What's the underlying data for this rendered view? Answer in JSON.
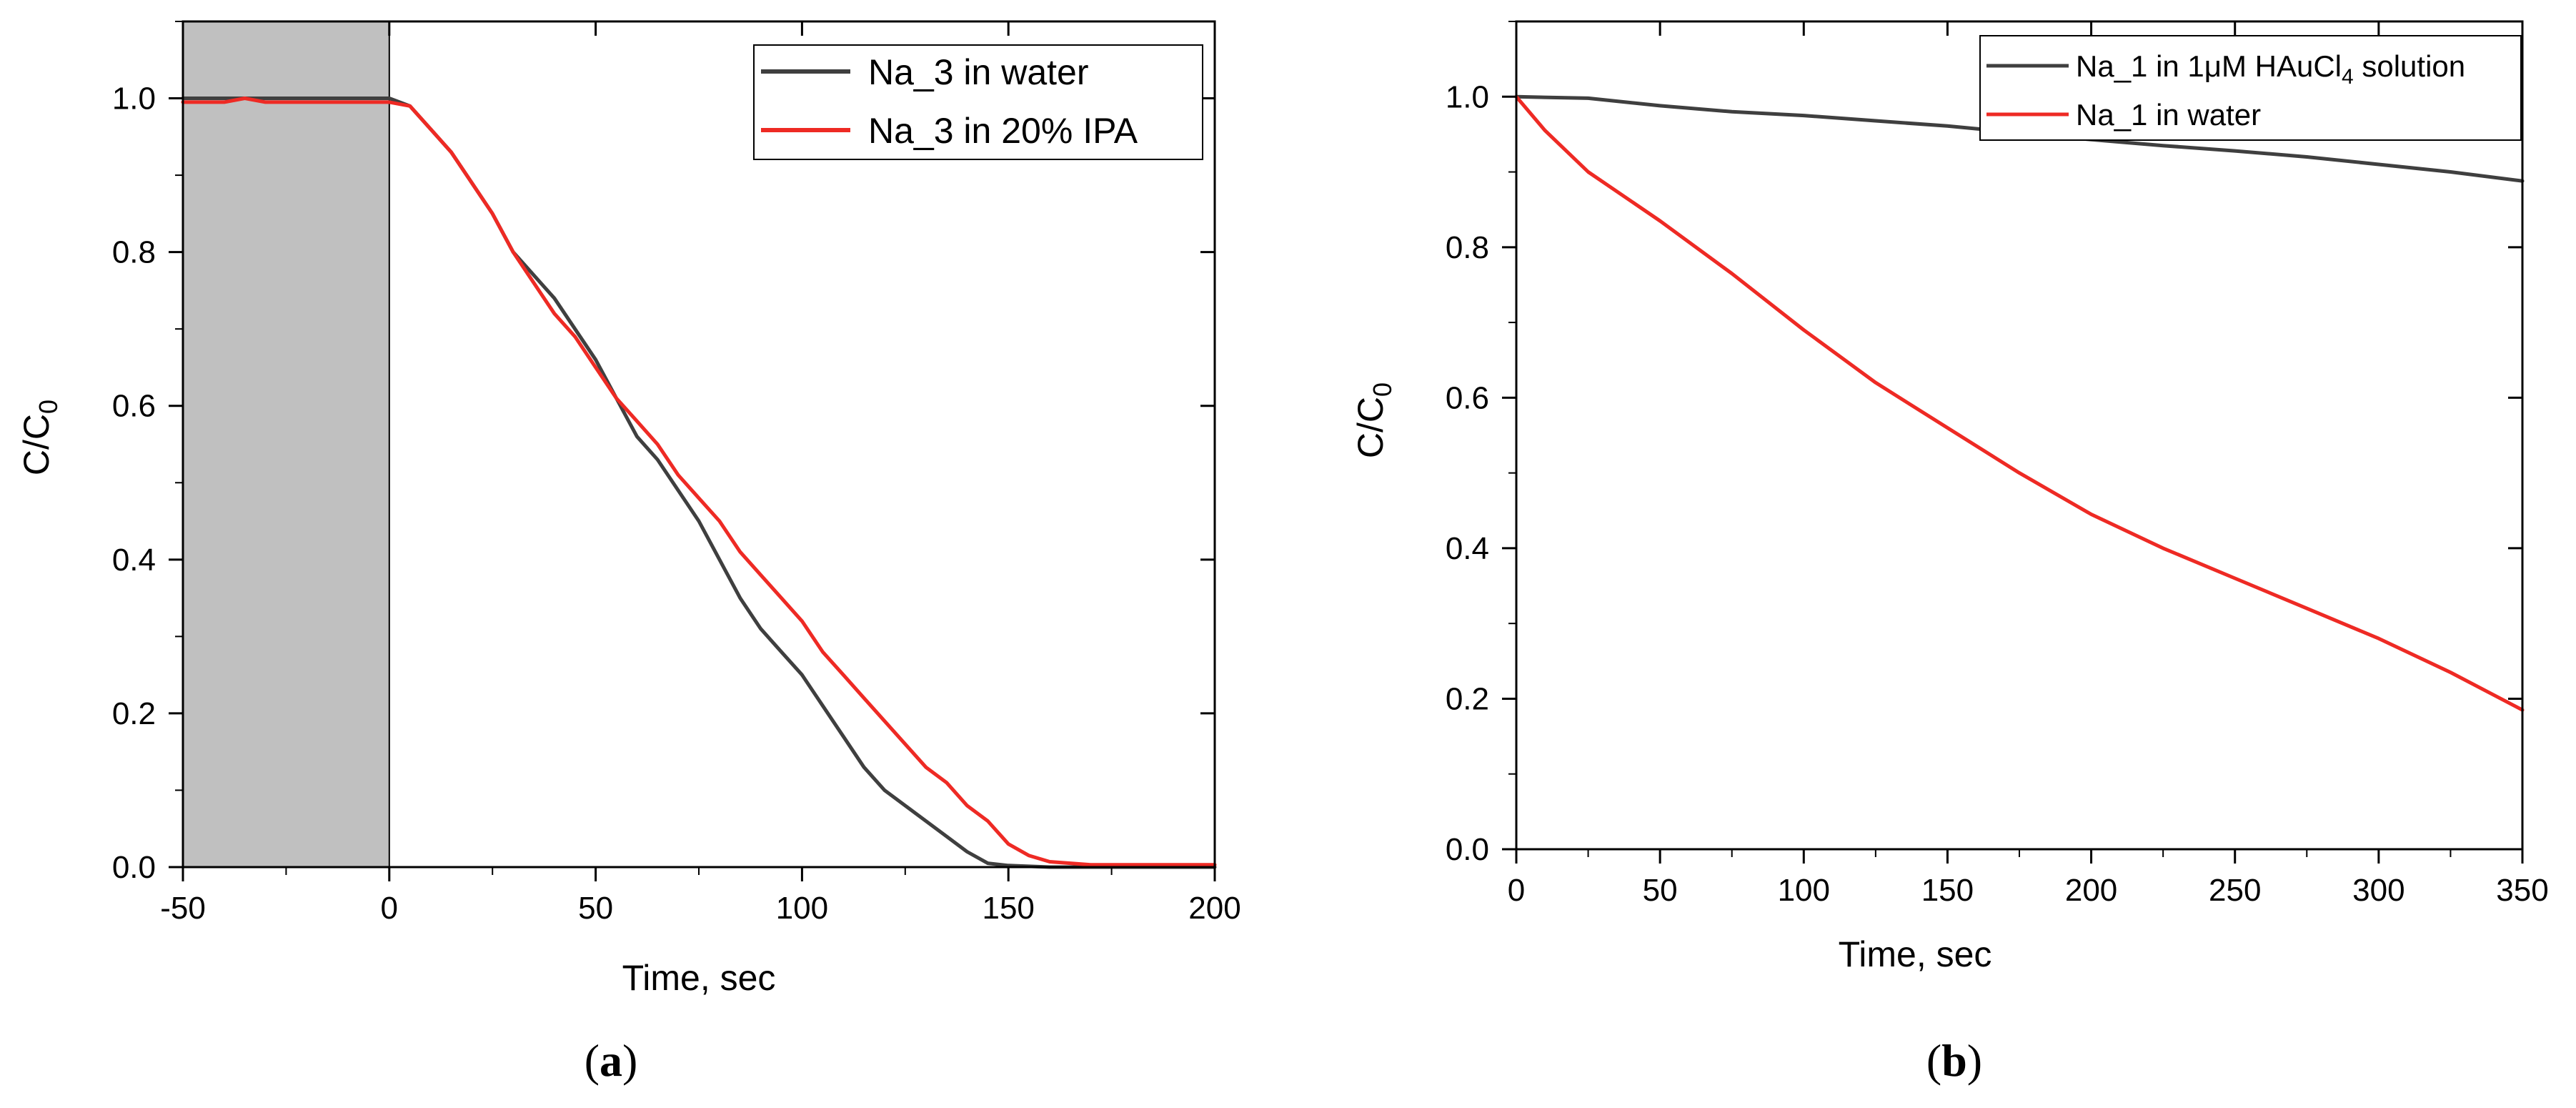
{
  "colors": {
    "black_series": "#3f3f3f",
    "red_series": "#ee2a24",
    "shade": "#c0c0c0",
    "axis": "#000000"
  },
  "chart_data": [
    {
      "id": "a",
      "type": "line",
      "panel_label": "a",
      "xlabel": "Time, sec",
      "ylabel": "C/C",
      "ylabel_sub": "0",
      "xlim": [
        -50,
        200
      ],
      "ylim": [
        0.0,
        1.1
      ],
      "xticks": [
        -50,
        0,
        50,
        100,
        150,
        200
      ],
      "xtick_labels": [
        "-50",
        "0",
        "50",
        "100",
        "150",
        "200"
      ],
      "yticks": [
        0.0,
        0.2,
        0.4,
        0.6,
        0.8,
        1.0
      ],
      "ytick_labels": [
        "0.0",
        "0.2",
        "0.4",
        "0.6",
        "0.8",
        "1.0"
      ],
      "shaded_region": {
        "x0": -50,
        "x1": 0
      },
      "legend_position": "top-right",
      "series": [
        {
          "name": "Na_3 in water",
          "color": "#3f3f3f",
          "x": [
            -50,
            -40,
            -30,
            -20,
            -10,
            0,
            5,
            10,
            15,
            20,
            25,
            30,
            35,
            40,
            45,
            50,
            55,
            60,
            65,
            70,
            75,
            80,
            85,
            90,
            95,
            100,
            105,
            110,
            115,
            120,
            125,
            130,
            135,
            140,
            145,
            150,
            160,
            170,
            180,
            190,
            200
          ],
          "y": [
            1.0,
            1.0,
            1.0,
            1.0,
            1.0,
            1.0,
            0.99,
            0.96,
            0.93,
            0.89,
            0.85,
            0.8,
            0.77,
            0.74,
            0.7,
            0.66,
            0.61,
            0.56,
            0.53,
            0.49,
            0.45,
            0.4,
            0.35,
            0.31,
            0.28,
            0.25,
            0.21,
            0.17,
            0.13,
            0.1,
            0.08,
            0.06,
            0.04,
            0.02,
            0.005,
            0.002,
            0.0,
            0.0,
            0.0,
            0.0,
            0.0
          ]
        },
        {
          "name": "Na_3 in 20% IPA",
          "color": "#ee2a24",
          "x": [
            -50,
            -40,
            -35,
            -30,
            -20,
            -10,
            0,
            5,
            10,
            15,
            20,
            25,
            30,
            35,
            40,
            45,
            50,
            55,
            60,
            65,
            70,
            75,
            80,
            85,
            90,
            95,
            100,
            105,
            110,
            115,
            120,
            125,
            130,
            135,
            140,
            145,
            150,
            155,
            160,
            165,
            170,
            180,
            190,
            200
          ],
          "y": [
            0.995,
            0.995,
            1.0,
            0.995,
            0.995,
            0.995,
            0.995,
            0.99,
            0.96,
            0.93,
            0.89,
            0.85,
            0.8,
            0.76,
            0.72,
            0.69,
            0.65,
            0.61,
            0.58,
            0.55,
            0.51,
            0.48,
            0.45,
            0.41,
            0.38,
            0.35,
            0.32,
            0.28,
            0.25,
            0.22,
            0.19,
            0.16,
            0.13,
            0.11,
            0.08,
            0.06,
            0.03,
            0.015,
            0.007,
            0.005,
            0.003,
            0.003,
            0.003,
            0.003
          ]
        }
      ]
    },
    {
      "id": "b",
      "type": "line",
      "panel_label": "b",
      "xlabel": "Time, sec",
      "ylabel": "C/C",
      "ylabel_sub": "0",
      "xlim": [
        0,
        350
      ],
      "ylim": [
        0.0,
        1.1
      ],
      "xticks": [
        0,
        50,
        100,
        150,
        200,
        250,
        300,
        350
      ],
      "xtick_labels": [
        "0",
        "50",
        "100",
        "150",
        "200",
        "250",
        "300",
        "350"
      ],
      "yticks": [
        0.0,
        0.2,
        0.4,
        0.6,
        0.8,
        1.0
      ],
      "ytick_labels": [
        "0.0",
        "0.2",
        "0.4",
        "0.6",
        "0.8",
        "1.0"
      ],
      "legend_position": "top-right",
      "series": [
        {
          "name": "Na_1 in 1μM HAuCl4 solution",
          "legend_main": "Na_1 in 1μM HAuCl",
          "legend_sub": "4",
          "legend_tail": " solution",
          "color": "#3f3f3f",
          "x": [
            0,
            25,
            50,
            75,
            100,
            125,
            150,
            175,
            200,
            225,
            250,
            275,
            300,
            325,
            350
          ],
          "y": [
            1.0,
            0.998,
            0.988,
            0.98,
            0.975,
            0.968,
            0.961,
            0.952,
            0.943,
            0.935,
            0.928,
            0.92,
            0.91,
            0.9,
            0.888
          ]
        },
        {
          "name": "Na_1 in water",
          "color": "#ee2a24",
          "x": [
            0,
            10,
            25,
            50,
            75,
            100,
            125,
            150,
            175,
            200,
            225,
            250,
            275,
            300,
            325,
            340,
            350
          ],
          "y": [
            1.0,
            0.955,
            0.9,
            0.835,
            0.765,
            0.69,
            0.62,
            0.56,
            0.5,
            0.445,
            0.4,
            0.36,
            0.32,
            0.28,
            0.235,
            0.205,
            0.185
          ]
        }
      ]
    }
  ]
}
